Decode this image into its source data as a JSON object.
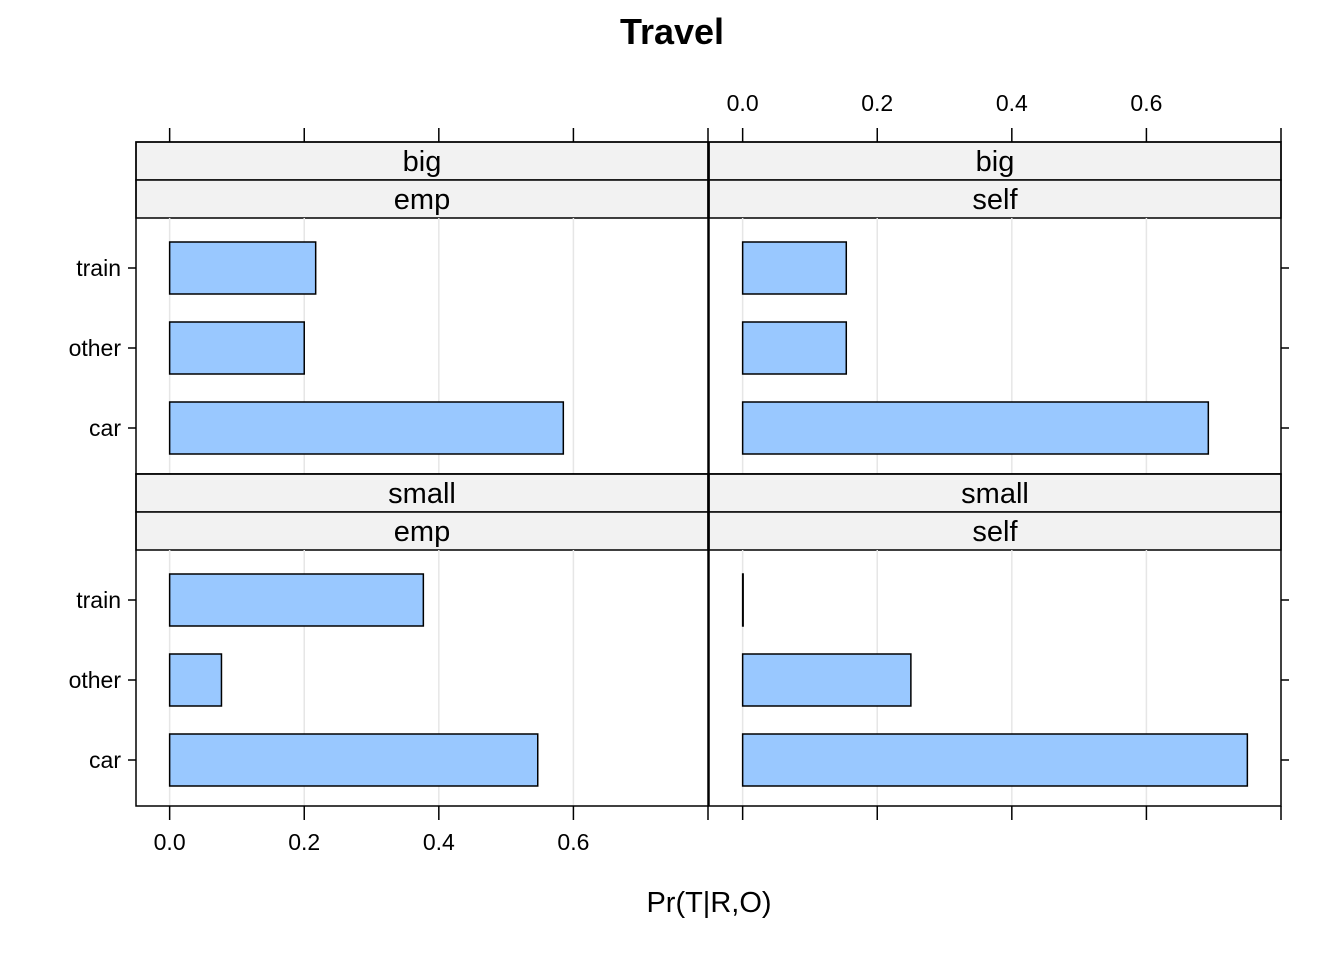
{
  "chart_data": {
    "type": "bar",
    "orientation": "horizontal",
    "title": "Travel",
    "xlabel": "Pr(T|R,O)",
    "ylabel": "",
    "xlim": [
      -0.05,
      0.8
    ],
    "x_ticks": [
      0.0,
      0.2,
      0.4,
      0.6
    ],
    "x_tick_labels": [
      "0.0",
      "0.2",
      "0.4",
      "0.6"
    ],
    "categories": [
      "train",
      "other",
      "car"
    ],
    "grid": "vertical",
    "colors": {
      "bar_fill": "#99c8ff",
      "bar_stroke": "#000000",
      "strip_fill": "#f2f2f2",
      "grid": "#e6e6e6"
    },
    "panels": [
      {
        "strip": [
          "big",
          "emp"
        ],
        "values": {
          "train": 0.217,
          "other": 0.2,
          "car": 0.585
        }
      },
      {
        "strip": [
          "big",
          "self"
        ],
        "values": {
          "train": 0.154,
          "other": 0.154,
          "car": 0.692
        }
      },
      {
        "strip": [
          "small",
          "emp"
        ],
        "values": {
          "train": 0.377,
          "other": 0.077,
          "car": 0.547
        }
      },
      {
        "strip": [
          "small",
          "self"
        ],
        "values": {
          "train": 0.0,
          "other": 0.25,
          "car": 0.75
        }
      }
    ]
  }
}
